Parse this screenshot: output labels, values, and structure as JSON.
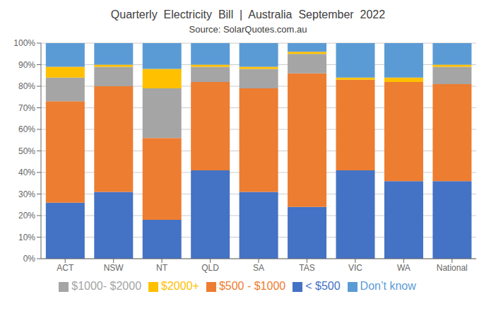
{
  "chart_data": {
    "type": "bar",
    "title": "Quarterly  Electricity  Bill  |  Australia  September  2022",
    "subtitle": "Source: SolarQuotes.com.au",
    "categories": [
      "ACT",
      "NSW",
      "NT",
      "QLD",
      "SA",
      "TAS",
      "VIC",
      "WA",
      "National"
    ],
    "series": [
      {
        "name": "< $500",
        "color": "#4472c4",
        "values": [
          26,
          31,
          18,
          41,
          31,
          24,
          41,
          36,
          36
        ]
      },
      {
        "name": "$500 - $1000",
        "color": "#ed7d31",
        "values": [
          47,
          49,
          38,
          41,
          48,
          62,
          42,
          46,
          45
        ]
      },
      {
        "name": "$1000- $2000",
        "color": "#a5a5a5",
        "values": [
          11,
          9,
          23,
          7,
          9,
          9,
          0,
          0,
          8
        ]
      },
      {
        "name": "$2000+",
        "color": "#ffc000",
        "values": [
          5,
          1,
          9,
          1,
          1,
          1,
          1,
          2,
          1
        ]
      },
      {
        "name": "Don’t know",
        "color": "#5b9bd5",
        "values": [
          11,
          10,
          12,
          10,
          11,
          4,
          16,
          16,
          10
        ]
      }
    ],
    "ylim": [
      0,
      100
    ],
    "yticks": [
      {
        "value": 0,
        "label": "0%"
      },
      {
        "value": 10,
        "label": "10%"
      },
      {
        "value": 20,
        "label": "20%"
      },
      {
        "value": 30,
        "label": "30%"
      },
      {
        "value": 40,
        "label": "40%"
      },
      {
        "value": 50,
        "label": "50%"
      },
      {
        "value": 60,
        "label": "60%"
      },
      {
        "value": 70,
        "label": "70%"
      },
      {
        "value": 80,
        "label": "80%"
      },
      {
        "value": 90,
        "label": "90%"
      },
      {
        "value": 100,
        "label": "100%"
      }
    ],
    "stacked": true,
    "grid": true,
    "legend": "bottom"
  }
}
